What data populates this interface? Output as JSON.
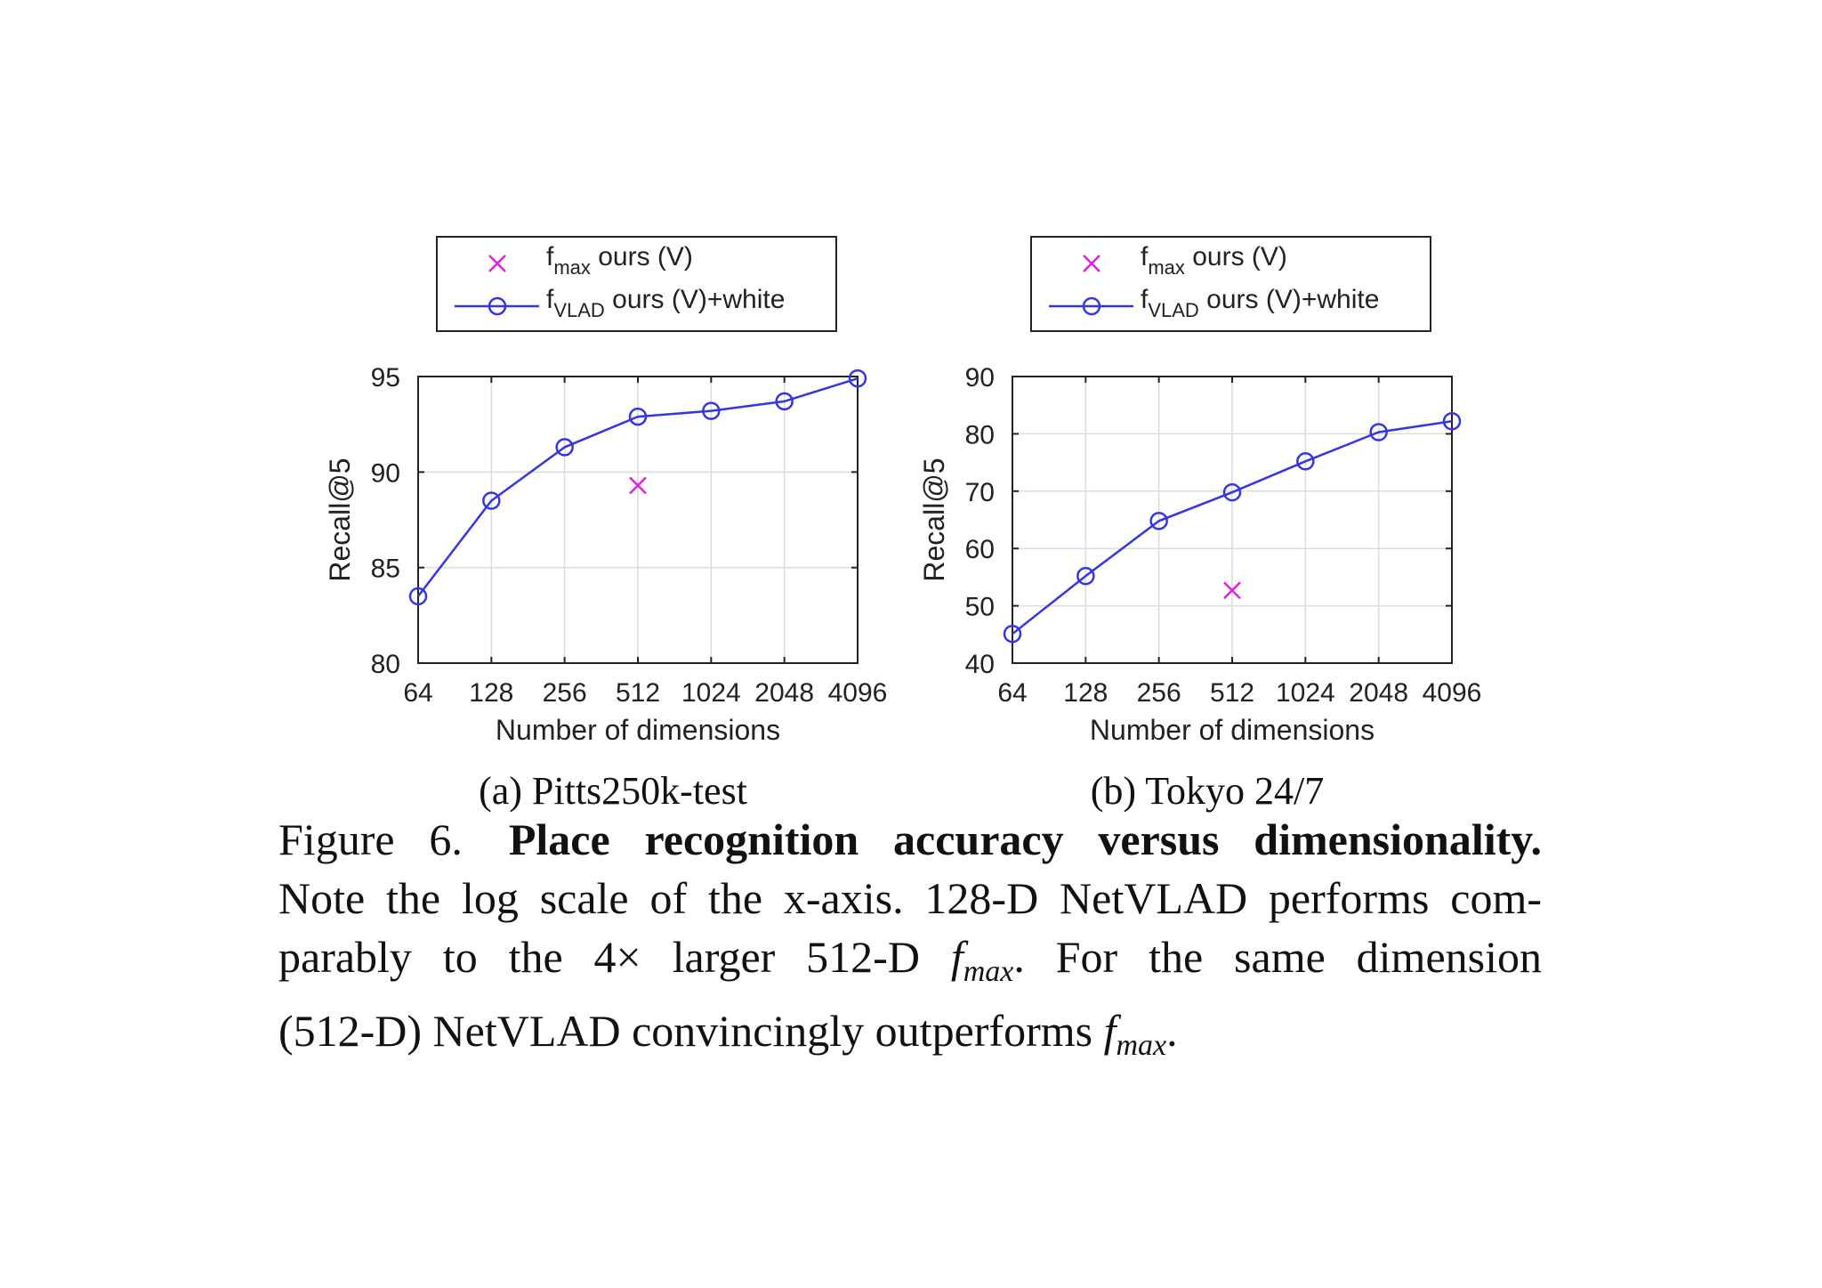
{
  "colors": {
    "line": "#3535e6",
    "marker_x": "#e020e0",
    "grid": "#dcdcdc",
    "axis": "#222222"
  },
  "icons": {
    "legend_x": "cross-marker-icon",
    "legend_circle": "circle-marker-icon"
  },
  "legend": {
    "entry_max": {
      "f": "f",
      "sub": "max",
      "rest": " ours (V)"
    },
    "entry_vlad": {
      "f": "f",
      "sub": "VLAD",
      "rest": " ours (V)+white"
    }
  },
  "chart_data": [
    {
      "type": "line",
      "subcaption": "(a) Pitts250k-test",
      "xlabel": "Number of dimensions",
      "ylabel": "Recall@5",
      "x_scale": "log2",
      "categories": [
        "64",
        "128",
        "256",
        "512",
        "1024",
        "2048",
        "4096"
      ],
      "ylim": [
        80,
        95
      ],
      "yticks": [
        "80",
        "85",
        "90",
        "95"
      ],
      "grid": true,
      "legend_position": "above",
      "series": [
        {
          "name": "fVLAD ours (V)+white",
          "marker": "circle",
          "x": [
            64,
            128,
            256,
            512,
            1024,
            2048,
            4096
          ],
          "values": [
            83.5,
            88.5,
            91.3,
            92.9,
            93.2,
            93.7,
            94.9
          ]
        },
        {
          "name": "fmax ours (V)",
          "marker": "x",
          "x": [
            512
          ],
          "values": [
            89.3
          ]
        }
      ]
    },
    {
      "type": "line",
      "subcaption": "(b) Tokyo 24/7",
      "xlabel": "Number of dimensions",
      "ylabel": "Recall@5",
      "x_scale": "log2",
      "categories": [
        "64",
        "128",
        "256",
        "512",
        "1024",
        "2048",
        "4096"
      ],
      "ylim": [
        40,
        90
      ],
      "yticks": [
        "40",
        "50",
        "60",
        "70",
        "80",
        "90"
      ],
      "grid": true,
      "legend_position": "above",
      "series": [
        {
          "name": "fVLAD ours (V)+white",
          "marker": "circle",
          "x": [
            64,
            128,
            256,
            512,
            1024,
            2048,
            4096
          ],
          "values": [
            45.1,
            55.2,
            64.8,
            69.8,
            75.2,
            80.3,
            82.2
          ]
        },
        {
          "name": "fmax ours (V)",
          "marker": "x",
          "x": [
            512
          ],
          "values": [
            52.7
          ]
        }
      ]
    }
  ],
  "caption": {
    "label": "Figure 6.",
    "title": "Place recognition accuracy versus dimensionality.",
    "s1": "Note the log scale of the x-axis. 128-D NetVLAD performs com-",
    "s2a": "parably to the 4× larger 512-D ",
    "s2b": ".  For the same dimension",
    "s3a": "(512-D) NetVLAD convincingly outperforms ",
    "s3b": ".",
    "math_f": "f",
    "math_sub": "max"
  }
}
